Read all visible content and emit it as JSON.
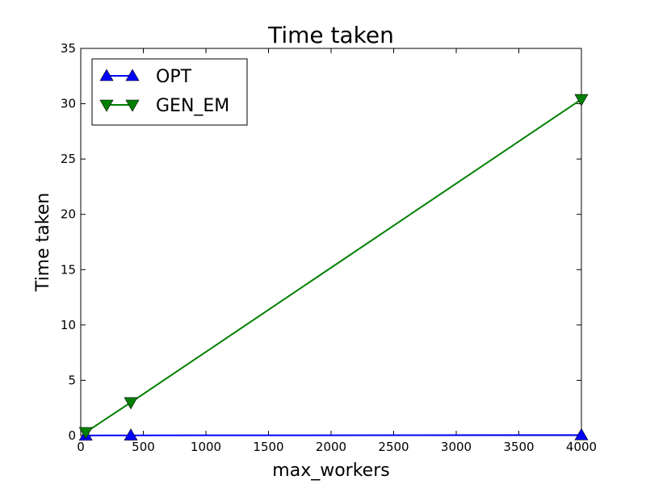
{
  "chart_data": {
    "type": "line",
    "title": "Time taken",
    "xlabel": "max_workers",
    "ylabel": "Time taken",
    "xlim": [
      0,
      4000
    ],
    "ylim": [
      0,
      35
    ],
    "x_ticks": [
      0,
      500,
      1000,
      1500,
      2000,
      2500,
      3000,
      3500,
      4000
    ],
    "y_ticks": [
      0,
      5,
      10,
      15,
      20,
      25,
      30,
      35
    ],
    "grid": false,
    "legend_position": "top-left",
    "series": [
      {
        "name": "OPT",
        "color": "#0000ff",
        "marker": "triangle-up",
        "x": [
          40,
          400,
          4000
        ],
        "y": [
          0.01,
          0.02,
          0.05
        ]
      },
      {
        "name": "GEN_EM",
        "color": "#008000",
        "marker": "triangle-down",
        "x": [
          40,
          400,
          4000
        ],
        "y": [
          0.3,
          3.0,
          30.4
        ]
      }
    ]
  }
}
